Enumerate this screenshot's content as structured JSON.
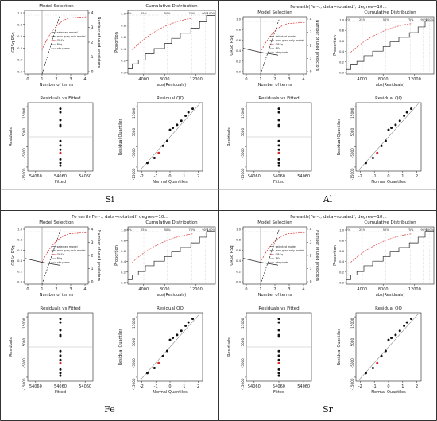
{
  "figure": {
    "panels": [
      {
        "label": "Si",
        "header": "",
        "model_selection": {
          "title": "Model Selection",
          "ylabel_left": "GRSq   RSq",
          "ylabel_right": "Number of used predictors",
          "xlabel": "Number of terms",
          "x_ticks": [
            "0",
            "1",
            "2",
            "3",
            "4"
          ],
          "y_left_ticks": [
            "0.0",
            "0.2",
            "0.4",
            "0.6",
            "0.8",
            "1.0"
          ],
          "y_right_ticks": [
            "0",
            "1",
            "2",
            "3",
            "4"
          ],
          "legend": [
            "selected model",
            "max grsq only model",
            "GRSq",
            "RSq",
            "nbr preds"
          ]
        },
        "cumdist": {
          "title": "Cumulative Distribution",
          "ylabel": "Proportion",
          "xlabel": "abs(Residuals)",
          "top_ticks": [
            "0%",
            "25%",
            "50%",
            "75%",
            "90%",
            "100%"
          ],
          "x_ticks": [
            "4000",
            "8000",
            "12000"
          ],
          "y_ticks": [
            "0.0",
            "0.2",
            "0.4",
            "0.6",
            "0.8",
            "1.0"
          ]
        },
        "resfit": {
          "title": "Residuals vs Fitted",
          "ylabel": "Residuals",
          "xlabel": "Fitted",
          "x_ticks": [
            "54060",
            "54060",
            "54060"
          ],
          "y_ticks": [
            "-15000",
            "-5000",
            "5000",
            "15000"
          ],
          "points": [
            14000,
            12200,
            8300,
            5900,
            5200,
            -2100,
            -4300,
            -6400,
            -8000,
            -11200,
            -13000,
            -14300
          ]
        },
        "qq": {
          "title": "Residual QQ",
          "ylabel": "Residual Quantiles",
          "xlabel": "Normal Quantiles",
          "x_ticks": [
            "-2",
            "-1",
            "0",
            "1",
            "2"
          ],
          "y_ticks": [
            "-15000",
            "-5000",
            "5000",
            "15000"
          ],
          "points": [
            [
              -1.6,
              -13000
            ],
            [
              -1.1,
              -10500
            ],
            [
              -0.8,
              -8000
            ],
            [
              -0.5,
              -4500
            ],
            [
              -0.2,
              -2000
            ],
            [
              0.0,
              3500
            ],
            [
              0.2,
              4500
            ],
            [
              0.5,
              6000
            ],
            [
              0.8,
              8000
            ],
            [
              1.1,
              10500
            ],
            [
              1.3,
              12200
            ],
            [
              1.6,
              14000
            ]
          ]
        }
      },
      {
        "label": "Al",
        "header": "Fe     earth(Fe~., data=rotatedf, degree=10...",
        "model_selection": {
          "title": "Model Selection",
          "ylabel_left": "GRSq   RSq",
          "ylabel_right": "Number of used predictors",
          "xlabel": "Number of terms",
          "x_ticks": [
            "0",
            "1",
            "2",
            "3",
            "4"
          ],
          "y_left_ticks": [
            "0.0",
            "0.2",
            "0.4",
            "0.6",
            "0.8",
            "1.0"
          ],
          "y_right_ticks": [
            "0",
            "1",
            "2",
            "3",
            "4"
          ],
          "legend": [
            "selected model",
            "max grsq only model",
            "GRSq",
            "RSq",
            "nbr preds"
          ]
        },
        "cumdist": {
          "title": "Cumulative Distribution",
          "ylabel": "Proportion",
          "xlabel": "abs(Residuals)",
          "top_ticks": [
            "0%",
            "25%",
            "50%",
            "75%",
            "90%",
            "100%"
          ],
          "x_ticks": [
            "4000",
            "8000",
            "12000"
          ],
          "y_ticks": [
            "0.0",
            "0.2",
            "0.4",
            "0.6",
            "0.8",
            "1.0"
          ]
        },
        "resfit": {
          "title": "Residuals vs Fitted",
          "ylabel": "Residuals",
          "xlabel": "Fitted",
          "x_ticks": [
            "54060",
            "54060",
            "54060"
          ],
          "y_ticks": [
            "-15000",
            "-5000",
            "5000",
            "15000"
          ],
          "points": [
            14000,
            12200,
            8300,
            5900,
            5200,
            -2100,
            -4300,
            -6400,
            -8000,
            -11200,
            -13000,
            -14300
          ]
        },
        "qq": {
          "title": "Residual QQ",
          "ylabel": "Residual Quantiles",
          "xlabel": "Normal Quantiles",
          "x_ticks": [
            "-2",
            "-1",
            "0",
            "1",
            "2"
          ],
          "y_ticks": [
            "-15000",
            "-5000",
            "5000",
            "15000"
          ],
          "points": [
            [
              -1.6,
              -13000
            ],
            [
              -1.1,
              -10500
            ],
            [
              -0.8,
              -8000
            ],
            [
              -0.5,
              -4500
            ],
            [
              -0.2,
              -2000
            ],
            [
              0.0,
              3500
            ],
            [
              0.2,
              4500
            ],
            [
              0.5,
              6000
            ],
            [
              0.8,
              8000
            ],
            [
              1.1,
              10500
            ],
            [
              1.3,
              12200
            ],
            [
              1.6,
              14000
            ]
          ]
        }
      },
      {
        "label": "Fe",
        "header": "Fe     earth(Fe~., data=rotatedf, degree=10...",
        "model_selection": {
          "title": "Model Selection",
          "ylabel_left": "GRSq   RSq",
          "ylabel_right": "Number of used predictors",
          "xlabel": "Number of terms",
          "x_ticks": [
            "0",
            "1",
            "2",
            "3",
            "4"
          ],
          "y_left_ticks": [
            "0.0",
            "0.2",
            "0.4",
            "0.6",
            "0.8",
            "1.0"
          ],
          "y_right_ticks": [
            "0",
            "1",
            "2",
            "3",
            "4"
          ],
          "legend": [
            "selected model",
            "max grsq only model",
            "GRSq",
            "RSq",
            "nbr preds"
          ]
        },
        "cumdist": {
          "title": "Cumulative Distribution",
          "ylabel": "Proportion",
          "xlabel": "abs(Residuals)",
          "top_ticks": [
            "0%",
            "25%",
            "50%",
            "75%",
            "90%",
            "100%"
          ],
          "x_ticks": [
            "4000",
            "8000",
            "12000"
          ],
          "y_ticks": [
            "0.0",
            "0.2",
            "0.4",
            "0.6",
            "0.8",
            "1.0"
          ]
        },
        "resfit": {
          "title": "Residuals vs Fitted",
          "ylabel": "Residuals",
          "xlabel": "Fitted",
          "x_ticks": [
            "54060",
            "54060",
            "54060"
          ],
          "y_ticks": [
            "-15000",
            "-5000",
            "5000",
            "15000"
          ],
          "points": [
            14000,
            12200,
            8300,
            5900,
            5200,
            -2100,
            -4300,
            -6400,
            -8000,
            -11200,
            -13000,
            -14300
          ]
        },
        "qq": {
          "title": "Residual QQ",
          "ylabel": "Residual Quantiles",
          "xlabel": "Normal Quantiles",
          "x_ticks": [
            "-2",
            "-1",
            "0",
            "1",
            "2"
          ],
          "y_ticks": [
            "-15000",
            "-5000",
            "5000",
            "15000"
          ],
          "points": [
            [
              -1.6,
              -13000
            ],
            [
              -1.1,
              -10500
            ],
            [
              -0.8,
              -8000
            ],
            [
              -0.5,
              -4500
            ],
            [
              -0.2,
              -2000
            ],
            [
              0.0,
              3500
            ],
            [
              0.2,
              4500
            ],
            [
              0.5,
              6000
            ],
            [
              0.8,
              8000
            ],
            [
              1.1,
              10500
            ],
            [
              1.3,
              12200
            ],
            [
              1.6,
              14000
            ]
          ]
        }
      },
      {
        "label": "Sr",
        "header": "Fe     earth(Fe~., data=rotatedf, degree=10...",
        "model_selection": {
          "title": "Model Selection",
          "ylabel_left": "GRSq   RSq",
          "ylabel_right": "Number of used predictors",
          "xlabel": "Number of terms",
          "x_ticks": [
            "0",
            "1",
            "2",
            "3",
            "4"
          ],
          "y_left_ticks": [
            "0.0",
            "0.2",
            "0.4",
            "0.6",
            "0.8",
            "1.0"
          ],
          "y_right_ticks": [
            "0",
            "1",
            "2",
            "3",
            "4"
          ],
          "legend": [
            "selected model",
            "max grsq only model",
            "GRSq",
            "RSq",
            "nbr preds"
          ]
        },
        "cumdist": {
          "title": "Cumulative Distribution",
          "ylabel": "Proportion",
          "xlabel": "abs(Residuals)",
          "top_ticks": [
            "0%",
            "25%",
            "50%",
            "75%",
            "90%",
            "100%"
          ],
          "x_ticks": [
            "4000",
            "8000",
            "12000"
          ],
          "y_ticks": [
            "0.0",
            "0.2",
            "0.4",
            "0.6",
            "0.8",
            "1.0"
          ]
        },
        "resfit": {
          "title": "Residuals vs Fitted",
          "ylabel": "Residuals",
          "xlabel": "Fitted",
          "x_ticks": [
            "54060",
            "54060",
            "54060"
          ],
          "y_ticks": [
            "-15000",
            "-5000",
            "5000",
            "15000"
          ],
          "points": [
            14000,
            12200,
            8300,
            5900,
            5200,
            -2100,
            -4300,
            -6400,
            -8000,
            -11200,
            -13000,
            -14300
          ]
        },
        "qq": {
          "title": "Residual QQ",
          "ylabel": "Residual Quantiles",
          "xlabel": "Normal Quantiles",
          "x_ticks": [
            "-2",
            "-1",
            "0",
            "1",
            "2"
          ],
          "y_ticks": [
            "-15000",
            "-5000",
            "5000",
            "15000"
          ],
          "points": [
            [
              -1.6,
              -13000
            ],
            [
              -1.1,
              -10500
            ],
            [
              -0.8,
              -8000
            ],
            [
              -0.5,
              -4500
            ],
            [
              -0.2,
              -2000
            ],
            [
              0.0,
              3500
            ],
            [
              0.2,
              4500
            ],
            [
              0.5,
              6000
            ],
            [
              0.8,
              8000
            ],
            [
              1.1,
              10500
            ],
            [
              1.3,
              12200
            ],
            [
              1.6,
              14000
            ]
          ]
        }
      }
    ],
    "colors": {
      "border": "#333333",
      "line": "#222222",
      "red": "#d62728",
      "grid": "#bbbbbb"
    }
  }
}
